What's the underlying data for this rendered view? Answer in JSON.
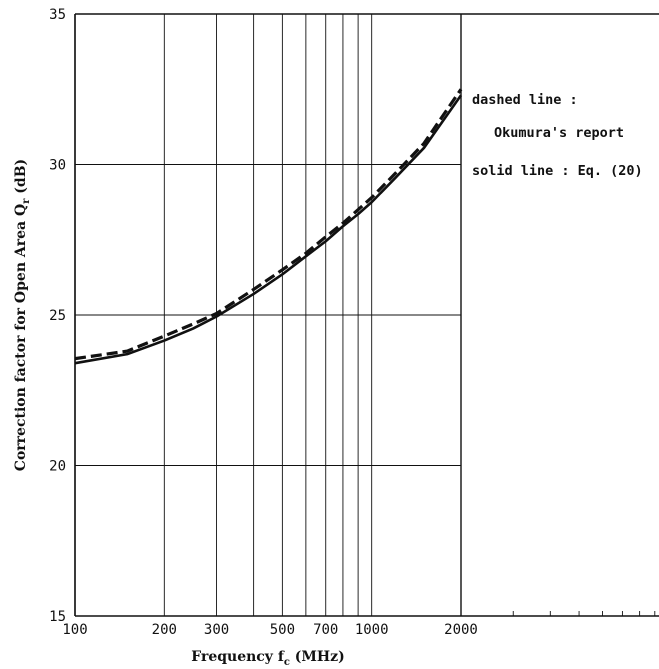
{
  "chart_data": {
    "type": "line",
    "xscale": "log",
    "xlim": [
      100,
      2000
    ],
    "ylim": [
      15,
      35
    ],
    "xticks": [
      100,
      200,
      300,
      500,
      700,
      1000,
      2000
    ],
    "xtick_labels": [
      "100",
      "200",
      "300",
      "500",
      "700",
      "1000",
      "2000"
    ],
    "xgrid": [
      100,
      200,
      300,
      400,
      500,
      600,
      700,
      800,
      900,
      1000,
      2000
    ],
    "yticks": [
      15,
      20,
      25,
      30,
      35
    ],
    "ytick_labels": [
      "15",
      "20",
      "25",
      "30",
      "35"
    ],
    "xlabel": {
      "main": "Frequency f",
      "sub": "c",
      "unit": " (MHz)"
    },
    "ylabel": {
      "main": "Correction factor for Open Area Q",
      "sub": "r",
      "unit": " (dB)"
    },
    "grid": true,
    "series": [
      {
        "name": "Okumura's report",
        "style": "dashed",
        "x": [
          100,
          150,
          200,
          250,
          300,
          400,
          500,
          600,
          700,
          800,
          900,
          1000,
          1200,
          1500,
          2000
        ],
        "y": [
          23.55,
          23.8,
          24.3,
          24.7,
          25.05,
          25.85,
          26.5,
          27.05,
          27.6,
          28.05,
          28.5,
          28.9,
          29.7,
          30.7,
          32.5
        ]
      },
      {
        "name": "Eq. (20)",
        "style": "solid",
        "x": [
          100,
          150,
          200,
          250,
          300,
          400,
          500,
          600,
          700,
          800,
          900,
          1000,
          1200,
          1500,
          2000
        ],
        "y": [
          23.4,
          23.7,
          24.15,
          24.55,
          24.95,
          25.7,
          26.35,
          26.95,
          27.45,
          27.95,
          28.35,
          28.75,
          29.55,
          30.55,
          32.3
        ]
      }
    ],
    "annotations": {
      "dashed_label": "dashed line :",
      "dashed_desc": "Okumura's report",
      "solid_label": "solid line : Eq. (20)"
    }
  }
}
